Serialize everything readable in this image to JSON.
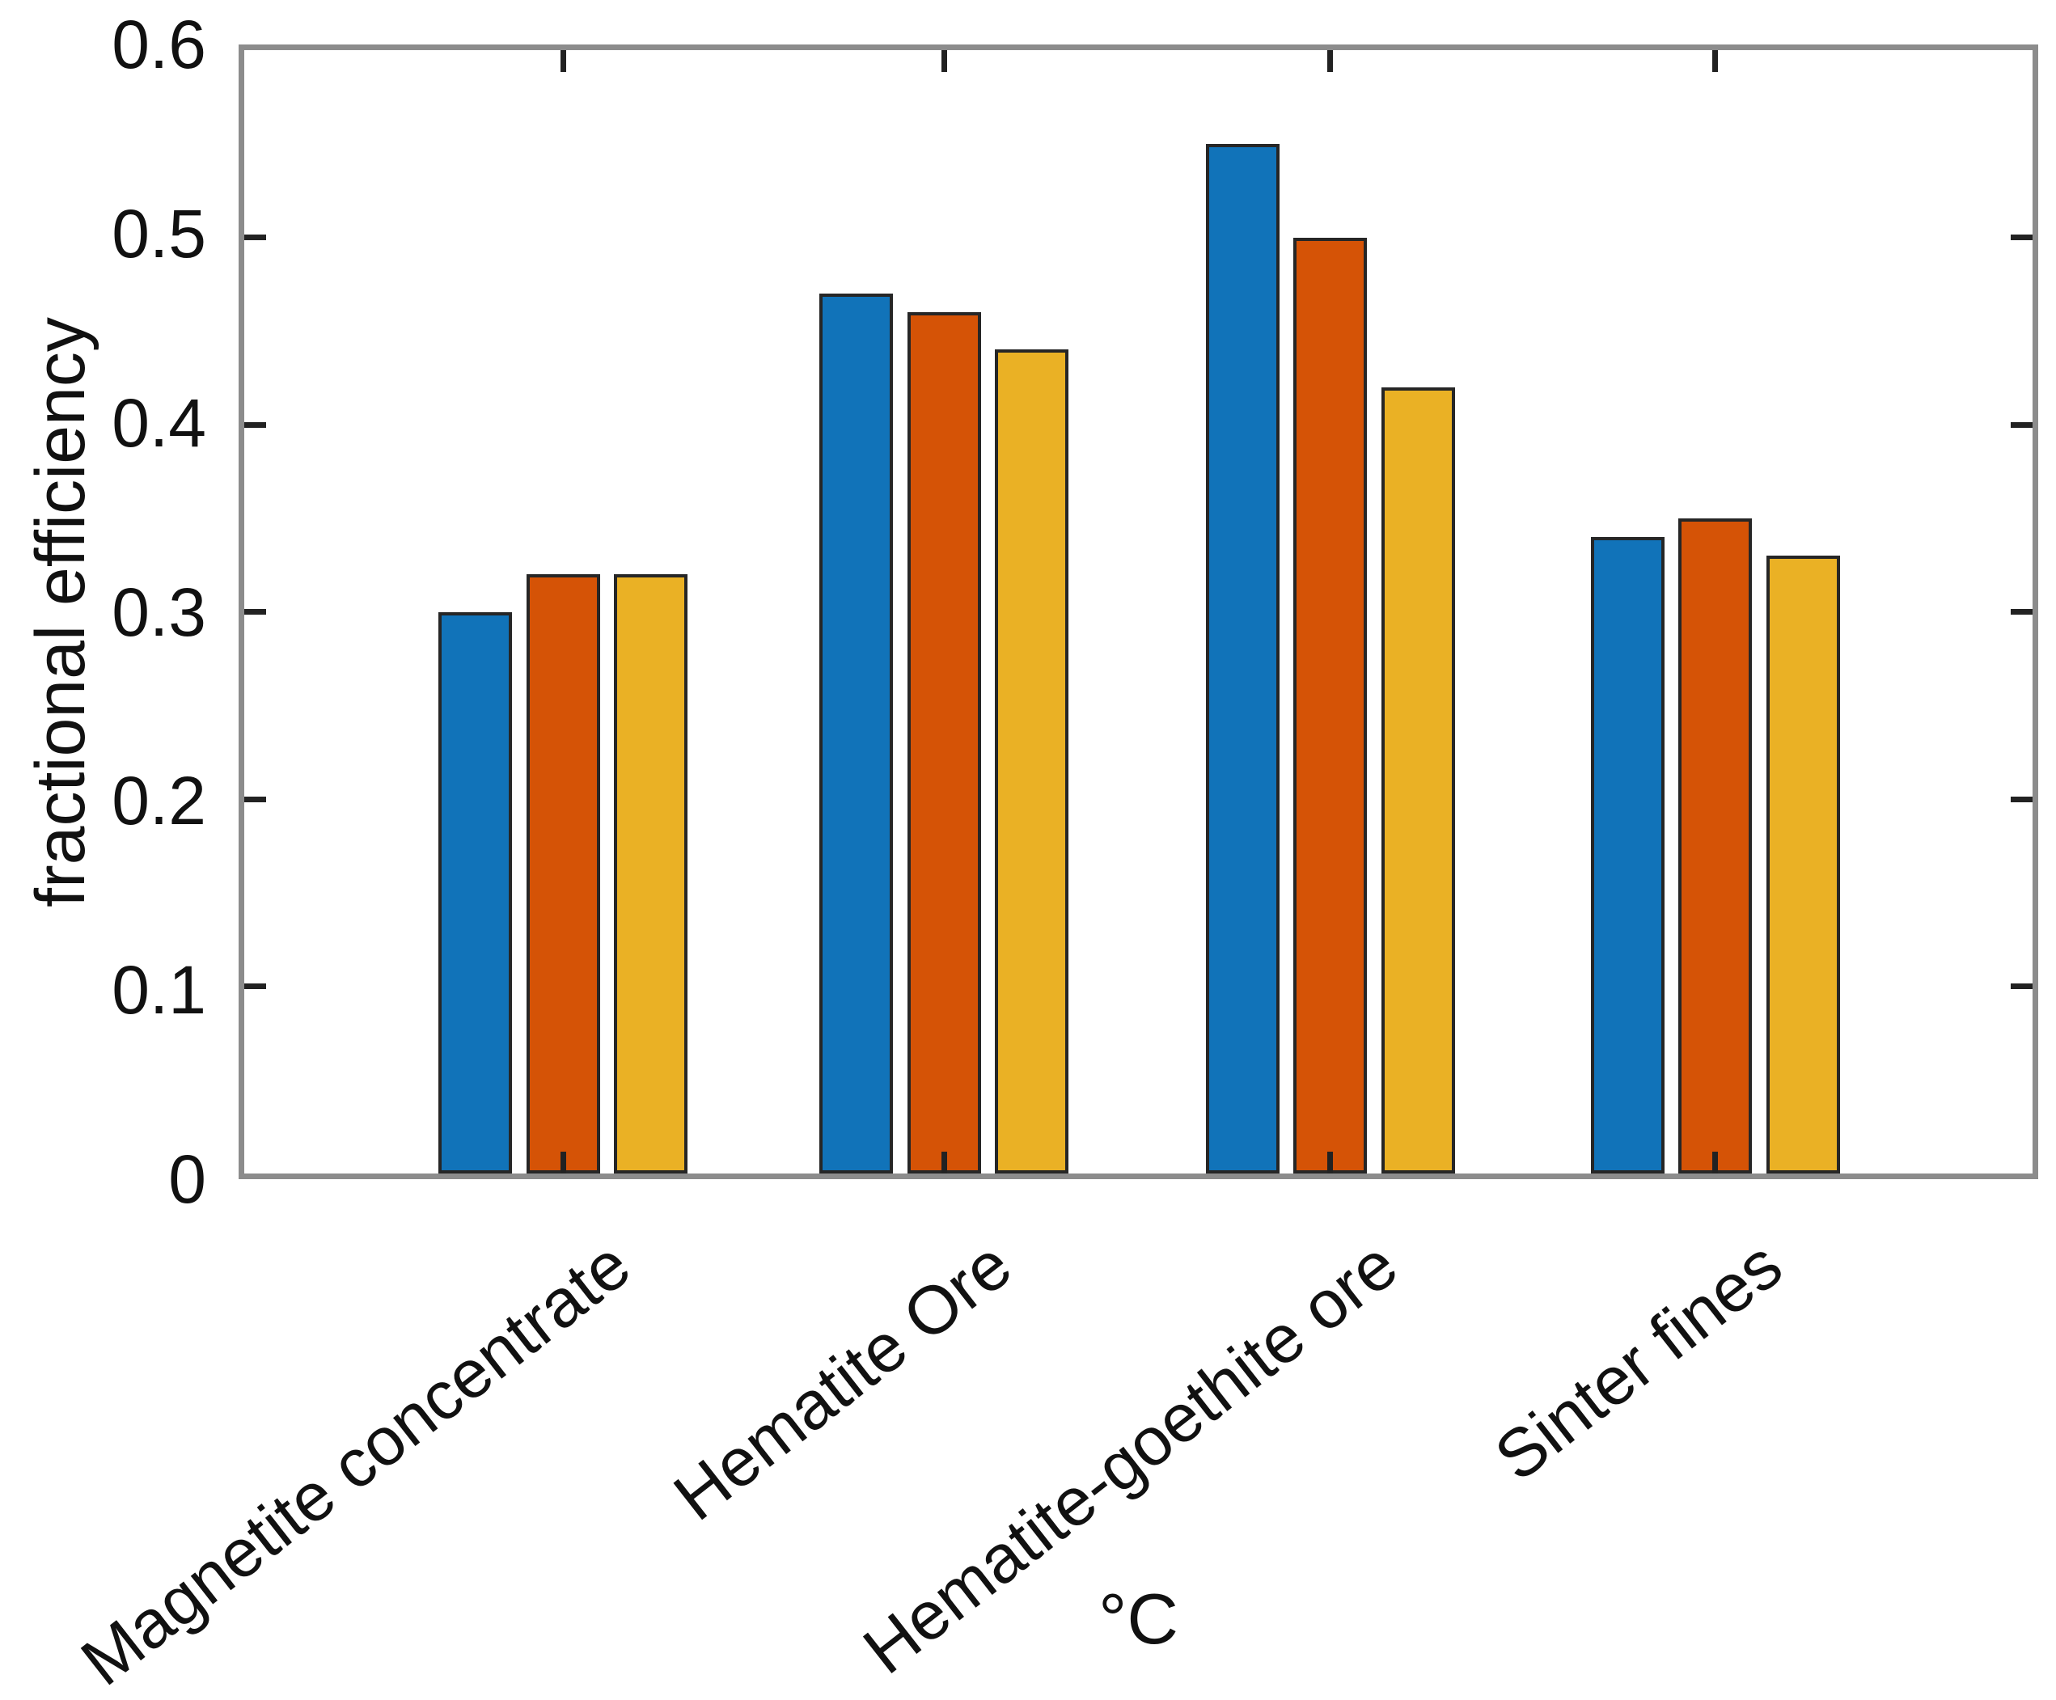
{
  "chart_data": {
    "type": "bar",
    "title": "",
    "xlabel": "°C",
    "ylabel": "fractional efficiency",
    "categories": [
      "Magnetite concentrate",
      "Hematite Ore",
      "Hematite-goethite ore",
      "Sinter fines"
    ],
    "series": [
      {
        "name": "blue",
        "color": "#1173B9",
        "values": [
          0.3,
          0.47,
          0.55,
          0.34
        ]
      },
      {
        "name": "orange",
        "color": "#D55306",
        "values": [
          0.32,
          0.46,
          0.5,
          0.35
        ]
      },
      {
        "name": "yellow",
        "color": "#EAB125",
        "values": [
          0.32,
          0.44,
          0.42,
          0.33
        ]
      }
    ],
    "ylim": [
      0,
      0.6
    ],
    "y_ticks": [
      0,
      0.1,
      0.2,
      0.3,
      0.4,
      0.5,
      0.6
    ],
    "y_tick_labels": [
      "0",
      "0.1",
      "0.2",
      "0.3",
      "0.4",
      "0.5",
      "0.6"
    ],
    "grid": false,
    "legend": null,
    "frame_color": "#8c8c8c",
    "tick_color": "#222222",
    "bar_edge_color": "#262626",
    "text_color": "#111111"
  }
}
